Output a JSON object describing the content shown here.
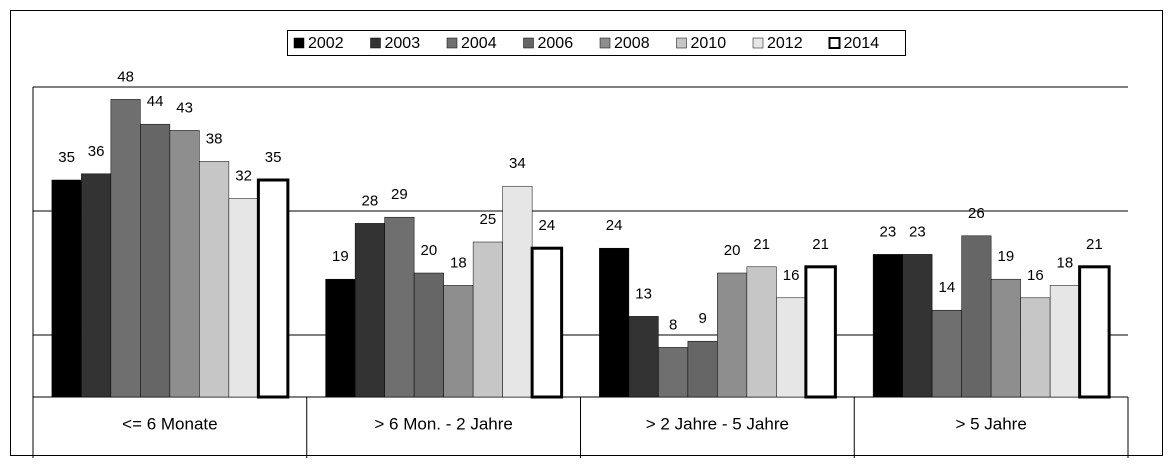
{
  "chart_data": {
    "type": "bar",
    "categories": [
      "<= 6 Monate",
      "> 6 Mon. - 2 Jahre",
      "> 2 Jahre - 5 Jahre",
      "> 5 Jahre"
    ],
    "series": [
      {
        "name": "2002",
        "color": "#000000",
        "values": [
          35,
          19,
          24,
          23
        ]
      },
      {
        "name": "2003",
        "color": "#333333",
        "values": [
          36,
          28,
          13,
          23
        ]
      },
      {
        "name": "2004",
        "color": "#6f6f6f",
        "values": [
          48,
          29,
          8,
          14
        ]
      },
      {
        "name": "2006",
        "color": "#666666",
        "values": [
          44,
          20,
          9,
          26
        ]
      },
      {
        "name": "2008",
        "color": "#8e8e8e",
        "values": [
          43,
          18,
          20,
          19
        ]
      },
      {
        "name": "2010",
        "color": "#c6c6c6",
        "values": [
          38,
          25,
          21,
          16
        ]
      },
      {
        "name": "2012",
        "color": "#e6e6e6",
        "values": [
          32,
          34,
          16,
          18
        ]
      },
      {
        "name": "2014",
        "color": "#ffffff",
        "values": [
          35,
          24,
          21,
          21
        ]
      }
    ],
    "ylim": [
      0,
      50
    ],
    "grid_lines": [
      10,
      30,
      50
    ],
    "legend": "top"
  }
}
